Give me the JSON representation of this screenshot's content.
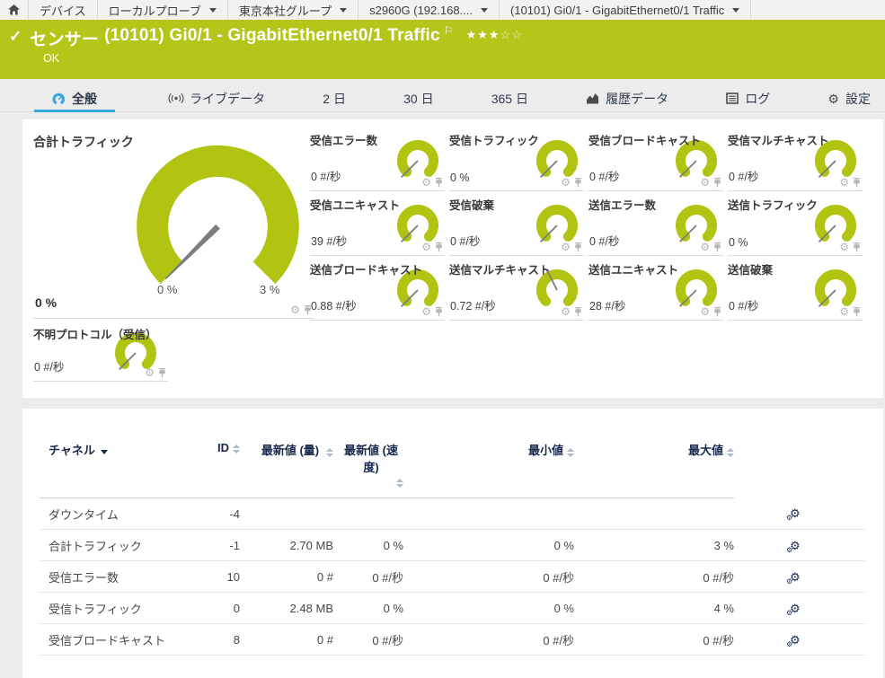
{
  "colors": {
    "header_green": "#b4c61a",
    "gauge_green": "#b0c411",
    "needle_gray": "#7d7d7d",
    "active_tab_blue": "#38a9e0",
    "table_header_navy": "#17284d",
    "icon_gray": "#b5b5b5"
  },
  "breadcrumb": {
    "home_icon": "home-icon",
    "items": [
      {
        "label": "デバイス",
        "dropdown": false
      },
      {
        "label": "ローカルプローブ",
        "dropdown": true
      },
      {
        "label": "東京本社グループ",
        "dropdown": true
      },
      {
        "label": "s2960G (192.168....",
        "dropdown": true
      },
      {
        "label": "(10101) Gi0/1 - GigabitEthernet0/1 Traffic",
        "dropdown": true
      }
    ]
  },
  "header": {
    "check_glyph": "✓",
    "type_label": "センサー",
    "title": "(10101) Gi0/1 - GigabitEthernet0/1 Traffic",
    "flag_glyph": "⚐",
    "stars_filled": "★★★",
    "stars_empty": "☆☆",
    "status": "OK"
  },
  "tabs": [
    {
      "label": "全般",
      "icon": "gauge",
      "active": true
    },
    {
      "label": "ライブデータ",
      "icon": "live",
      "active": false
    },
    {
      "label": "2 日",
      "icon": null,
      "active": false
    },
    {
      "label": "30 日",
      "icon": null,
      "active": false
    },
    {
      "label": "365 日",
      "icon": null,
      "active": false
    },
    {
      "label": "履歴データ",
      "icon": "area-chart",
      "active": false
    },
    {
      "label": "ログ",
      "icon": "log",
      "active": false
    },
    {
      "label": "設定",
      "icon": "gear",
      "active": false
    }
  ],
  "gauges": {
    "main": {
      "title": "合計トラフィック",
      "value": "0 %",
      "scale_min": "0 %",
      "scale_max": "3 %",
      "needle_angle": 135
    },
    "small": [
      {
        "title": "受信エラー数",
        "value": "0 #/秒",
        "needle_angle": 135
      },
      {
        "title": "受信トラフィック",
        "value": "0 %",
        "needle_angle": 135
      },
      {
        "title": "受信ブロードキャスト",
        "value": "0 #/秒",
        "needle_angle": 135
      },
      {
        "title": "受信マルチキャスト",
        "value": "0 #/秒",
        "needle_angle": 135
      },
      {
        "title": "受信ユニキャスト",
        "value": "39 #/秒",
        "needle_angle": 135
      },
      {
        "title": "受信破棄",
        "value": "0 #/秒",
        "needle_angle": 135
      },
      {
        "title": "送信エラー数",
        "value": "0 #/秒",
        "needle_angle": 135
      },
      {
        "title": "送信トラフィック",
        "value": "0 %",
        "needle_angle": 135
      },
      {
        "title": "送信ブロードキャスト",
        "value": "0.88 #/秒",
        "needle_angle": 135
      },
      {
        "title": "送信マルチキャスト",
        "value": "0.72 #/秒",
        "needle_angle": 243
      },
      {
        "title": "送信ユニキャスト",
        "value": "28 #/秒",
        "needle_angle": 135
      },
      {
        "title": "送信破棄",
        "value": "0 #/秒",
        "needle_angle": 135
      }
    ],
    "extra": {
      "title": "不明プロトコル（受信）",
      "value": "0 #/秒",
      "needle_angle": 135
    }
  },
  "table": {
    "headers": [
      {
        "label": "チャネル",
        "align": "left",
        "sorted": true
      },
      {
        "label": "ID",
        "align": "right",
        "narrow": false
      },
      {
        "label": "最新値 (量)",
        "align": "right",
        "narrow": true
      },
      {
        "label": "最新値 (速度)",
        "align": "right",
        "narrow": true
      },
      {
        "label": "最小値",
        "align": "right",
        "narrow": false
      },
      {
        "label": "最大値",
        "align": "right",
        "narrow": false
      }
    ],
    "rows": [
      {
        "channel": "ダウンタイム",
        "id": "-4",
        "latest_volume": "",
        "latest_speed": "",
        "min": "",
        "max": ""
      },
      {
        "channel": "合計トラフィック",
        "id": "-1",
        "latest_volume": "2.70 MB",
        "latest_speed": "0 %",
        "min": "0 %",
        "max": "3 %"
      },
      {
        "channel": "受信エラー数",
        "id": "10",
        "latest_volume": "0 #",
        "latest_speed": "0 #/秒",
        "min": "0 #/秒",
        "max": "0 #/秒"
      },
      {
        "channel": "受信トラフィック",
        "id": "0",
        "latest_volume": "2.48 MB",
        "latest_speed": "0 %",
        "min": "0 %",
        "max": "4 %"
      },
      {
        "channel": "受信ブロードキャスト",
        "id": "8",
        "latest_volume": "0 #",
        "latest_speed": "0 #/秒",
        "min": "0 #/秒",
        "max": "0 #/秒"
      }
    ]
  }
}
